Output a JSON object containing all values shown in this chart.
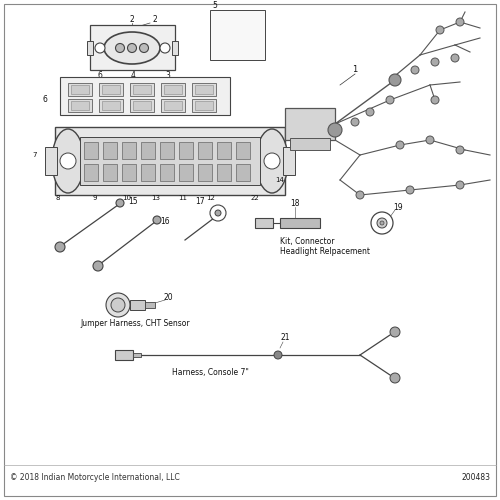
{
  "background_color": "#ffffff",
  "border_color": "#888888",
  "footer_text": "© 2018 Indian Motorcycle International, LLC",
  "part_number": "200483",
  "labels": {
    "kit_connector": "Kit, Connector\nHeadlight Relpacement",
    "jumper_harness": "Jumper Harness, CHT Sensor",
    "console_harness": "Harness, Console 7\""
  },
  "text_color": "#111111",
  "line_color": "#555555",
  "component_color": "#444444",
  "fig_w": 5.0,
  "fig_h": 5.0,
  "dpi": 100
}
